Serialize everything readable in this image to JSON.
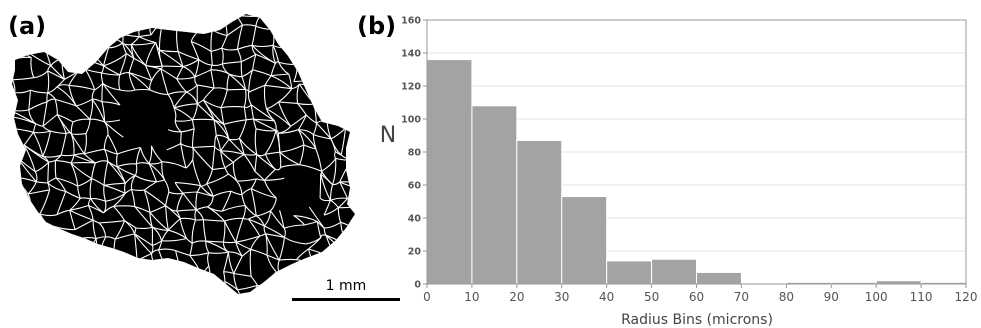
{
  "panels": {
    "a_label": "(a)",
    "b_label": "(b)"
  },
  "micrograph": {
    "scale_bar_label": "1 mm"
  },
  "chart_data": {
    "type": "bar",
    "xlabel": "Radius Bins (microns)",
    "ylabel": "N",
    "xlim": [
      0,
      120
    ],
    "ylim": [
      0,
      160
    ],
    "x_ticks": [
      "0",
      "10",
      "20",
      "30",
      "40",
      "50",
      "60",
      "70",
      "80",
      "90",
      "100",
      "110",
      "120"
    ],
    "y_ticks": [
      "0",
      "20",
      "40",
      "60",
      "80",
      "100",
      "120",
      "140",
      "160"
    ],
    "bins": [
      {
        "from": 0,
        "to": 10,
        "value": 136
      },
      {
        "from": 10,
        "to": 20,
        "value": 108
      },
      {
        "from": 20,
        "to": 30,
        "value": 87
      },
      {
        "from": 30,
        "to": 40,
        "value": 53
      },
      {
        "from": 40,
        "to": 50,
        "value": 14
      },
      {
        "from": 50,
        "to": 60,
        "value": 15
      },
      {
        "from": 60,
        "to": 70,
        "value": 7
      },
      {
        "from": 70,
        "to": 80,
        "value": 0
      },
      {
        "from": 80,
        "to": 90,
        "value": 1
      },
      {
        "from": 90,
        "to": 100,
        "value": 1
      },
      {
        "from": 100,
        "to": 110,
        "value": 2
      },
      {
        "from": 110,
        "to": 120,
        "value": 1
      }
    ],
    "grid": "horizontal",
    "bar_color": "#a3a3a3",
    "bar_edge_color": "#ffffff"
  }
}
